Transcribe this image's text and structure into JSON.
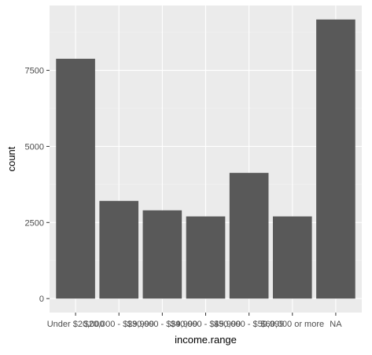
{
  "chart_data": {
    "type": "bar",
    "title": "",
    "xlabel": "income.range",
    "ylabel": "count",
    "categories": [
      "Under $20,000",
      "$20,000 - $29,999",
      "$30,000 - $39,999",
      "$40,000 - $49,999",
      "$50,000 - $59,999",
      "$60,000 or more",
      "NA"
    ],
    "values": [
      7880,
      3210,
      2900,
      2700,
      4130,
      2700,
      9170
    ],
    "yticks": [
      0,
      2500,
      5000,
      7500
    ],
    "ytick_labels": [
      "0",
      "2500",
      "5000",
      "7500"
    ],
    "ylim": [
      -460,
      9630
    ],
    "grid": true,
    "legend": "none",
    "colors": {
      "bar": "#595959",
      "panel": "#ebebeb",
      "grid_major": "#ffffff",
      "grid_minor": "#f4f4f4",
      "tick_text": "#4d4d4d",
      "axis_title": "#000000"
    }
  }
}
